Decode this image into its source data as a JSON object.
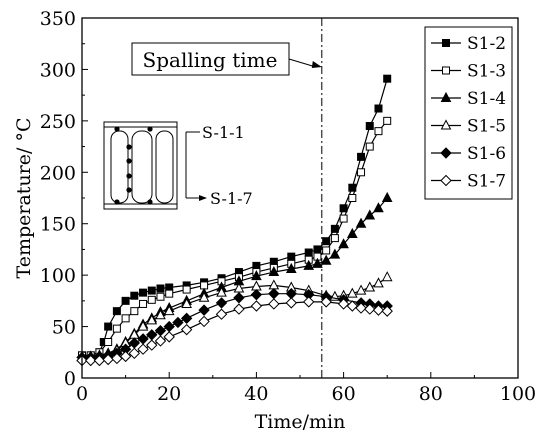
{
  "chart_data": {
    "type": "line",
    "xlabel": "Time/min",
    "ylabel": "Temperature/ °C",
    "xlim": [
      0,
      100
    ],
    "ylim": [
      0,
      350
    ],
    "xticks": [
      0,
      20,
      40,
      60,
      80,
      100
    ],
    "yticks": [
      0,
      50,
      100,
      150,
      200,
      250,
      300,
      350
    ],
    "grid": false,
    "legend_position": "top-right",
    "annotations": {
      "spalling_label": "Spalling time",
      "spalling_time": 55,
      "section_labels": [
        "S-1-1",
        "S-1-7"
      ]
    },
    "series": [
      {
        "name": "S1-2",
        "marker": "square-filled",
        "x": [
          0,
          2,
          4,
          5,
          6,
          8,
          10,
          12,
          14,
          16,
          18,
          20,
          24,
          28,
          32,
          36,
          40,
          44,
          48,
          52,
          54,
          56,
          58,
          60,
          62,
          64,
          66,
          68,
          70
        ],
        "y": [
          22,
          22,
          25,
          35,
          50,
          65,
          75,
          80,
          83,
          85,
          87,
          88,
          90,
          93,
          97,
          103,
          109,
          113,
          118,
          122,
          125,
          133,
          145,
          165,
          185,
          215,
          245,
          262,
          291
        ]
      },
      {
        "name": "S1-3",
        "marker": "square-open",
        "x": [
          0,
          2,
          4,
          6,
          8,
          10,
          12,
          14,
          16,
          18,
          20,
          24,
          28,
          32,
          36,
          40,
          44,
          48,
          52,
          54,
          56,
          58,
          60,
          62,
          64,
          66,
          68,
          70
        ],
        "y": [
          22,
          22,
          25,
          35,
          48,
          58,
          65,
          72,
          76,
          79,
          82,
          86,
          90,
          94,
          98,
          103,
          107,
          111,
          115,
          118,
          124,
          136,
          155,
          175,
          200,
          225,
          240,
          250
        ]
      },
      {
        "name": "S1-4",
        "marker": "triangle-filled",
        "x": [
          0,
          2,
          4,
          6,
          8,
          10,
          12,
          14,
          16,
          18,
          20,
          24,
          28,
          32,
          36,
          40,
          44,
          48,
          52,
          54,
          56,
          58,
          60,
          62,
          64,
          66,
          68,
          70
        ],
        "y": [
          20,
          21,
          22,
          24,
          28,
          35,
          43,
          52,
          58,
          64,
          68,
          75,
          82,
          88,
          94,
          99,
          103,
          106,
          109,
          111,
          114,
          120,
          130,
          140,
          150,
          158,
          165,
          175
        ]
      },
      {
        "name": "S1-5",
        "marker": "triangle-open",
        "x": [
          0,
          2,
          4,
          6,
          8,
          10,
          12,
          14,
          16,
          18,
          20,
          24,
          28,
          32,
          36,
          40,
          44,
          48,
          52,
          56,
          58,
          60,
          62,
          64,
          66,
          68,
          70
        ],
        "y": [
          20,
          20,
          21,
          23,
          27,
          34,
          42,
          50,
          56,
          61,
          65,
          72,
          78,
          83,
          87,
          89,
          90,
          88,
          85,
          80,
          79,
          80,
          82,
          85,
          88,
          92,
          98
        ]
      },
      {
        "name": "S1-6",
        "marker": "diamond-filled",
        "x": [
          0,
          2,
          4,
          6,
          8,
          10,
          12,
          14,
          16,
          18,
          20,
          22,
          24,
          28,
          32,
          36,
          40,
          44,
          48,
          52,
          56,
          60,
          64,
          66,
          68,
          70
        ],
        "y": [
          20,
          20,
          21,
          22,
          24,
          28,
          34,
          38,
          42,
          46,
          50,
          54,
          58,
          66,
          73,
          78,
          81,
          82,
          82,
          81,
          79,
          76,
          73,
          72,
          70,
          70
        ]
      },
      {
        "name": "S1-7",
        "marker": "diamond-open",
        "x": [
          0,
          2,
          4,
          6,
          8,
          10,
          12,
          14,
          16,
          18,
          20,
          24,
          28,
          32,
          36,
          40,
          44,
          48,
          52,
          56,
          60,
          62,
          64,
          66,
          68,
          70
        ],
        "y": [
          17,
          17,
          17,
          18,
          19,
          21,
          24,
          28,
          32,
          36,
          40,
          47,
          55,
          62,
          67,
          70,
          72,
          73,
          74,
          74,
          72,
          70,
          68,
          67,
          66,
          65
        ]
      }
    ]
  }
}
